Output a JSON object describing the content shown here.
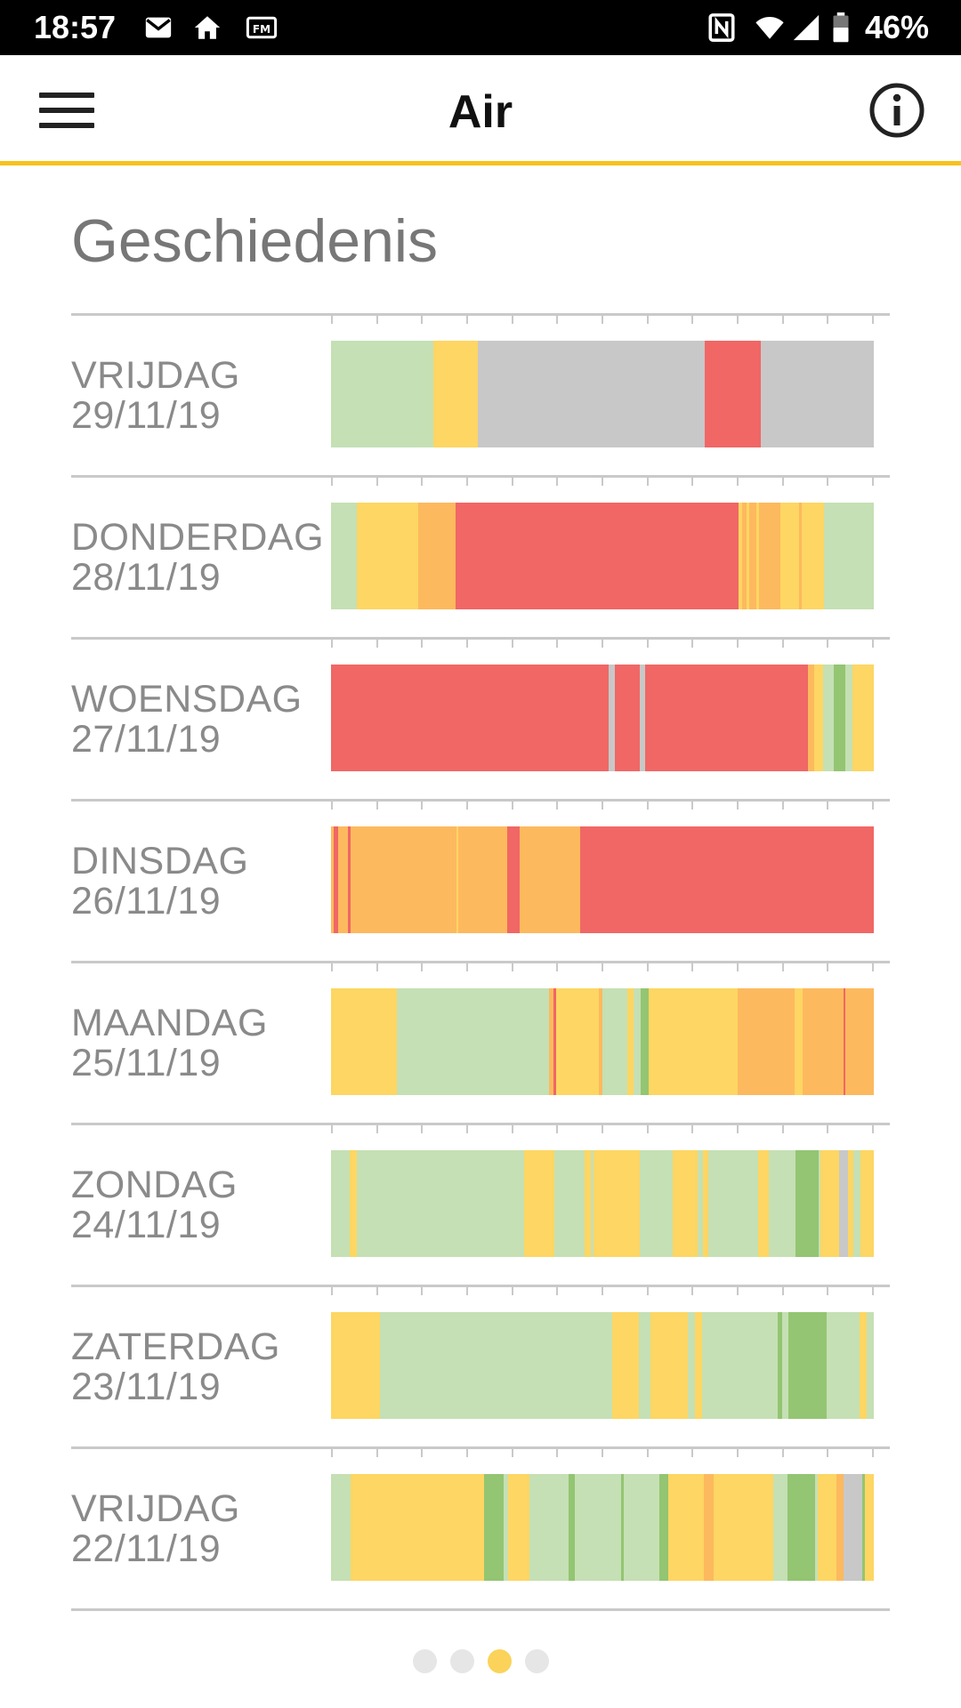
{
  "status_bar": {
    "time": "18:57",
    "left_icons": [
      "gmail-icon",
      "home-icon",
      "fm-radio-icon"
    ],
    "right_icons": [
      "nfc-icon",
      "wifi-icon",
      "signal-icon",
      "battery-icon"
    ],
    "battery": "46%"
  },
  "app_bar": {
    "title": "Air",
    "menu_icon": "hamburger-menu-icon",
    "info_icon": "info-icon"
  },
  "section_title": "Geschiedenis",
  "colors": {
    "G": "#c5e0b4",
    "D": "#93c572",
    "Y": "#fdd663",
    "O": "#fdb95e",
    "R": "#f06765",
    "S": "#c8c8c8",
    "accent": "#f7c21b"
  },
  "days": [
    {
      "day": "VRIJDAG",
      "date": "29/11/19",
      "segments": [
        [
          "G",
          0.188
        ],
        [
          "Y",
          0.083
        ],
        [
          "S",
          0.418
        ],
        [
          "R",
          0.102
        ],
        [
          "S",
          0.209
        ]
      ]
    },
    {
      "day": "DONDERDAG",
      "date": "28/11/19",
      "segments": [
        [
          "G",
          0.048
        ],
        [
          "Y",
          0.112
        ],
        [
          "O",
          0.07
        ],
        [
          "R",
          0.52
        ],
        [
          "Y",
          0.008
        ],
        [
          "O",
          0.008
        ],
        [
          "Y",
          0.005
        ],
        [
          "O",
          0.012
        ],
        [
          "Y",
          0.005
        ],
        [
          "O",
          0.04
        ],
        [
          "Y",
          0.035
        ],
        [
          "O",
          0.005
        ],
        [
          "Y",
          0.04
        ],
        [
          "G",
          0.092
        ]
      ]
    },
    {
      "day": "WOENSDAG",
      "date": "27/11/19",
      "segments": [
        [
          "R",
          0.51
        ],
        [
          "S",
          0.012
        ],
        [
          "R",
          0.045
        ],
        [
          "S",
          0.01
        ],
        [
          "R",
          0.3
        ],
        [
          "O",
          0.012
        ],
        [
          "Y",
          0.015
        ],
        [
          "G",
          0.02
        ],
        [
          "D",
          0.022
        ],
        [
          "G",
          0.012
        ],
        [
          "Y",
          0.04
        ]
      ]
    },
    {
      "day": "DINSDAG",
      "date": "26/11/19",
      "segments": [
        [
          "O",
          0.005
        ],
        [
          "R",
          0.008
        ],
        [
          "O",
          0.018
        ],
        [
          "R",
          0.005
        ],
        [
          "O",
          0.195
        ],
        [
          "Y",
          0.004
        ],
        [
          "O",
          0.09
        ],
        [
          "R",
          0.022
        ],
        [
          "O",
          0.112
        ],
        [
          "R",
          0.541
        ]
      ]
    },
    {
      "day": "MAANDAG",
      "date": "25/11/19",
      "segments": [
        [
          "Y",
          0.105
        ],
        [
          "G",
          0.243
        ],
        [
          "O",
          0.008
        ],
        [
          "R",
          0.004
        ],
        [
          "Y",
          0.068
        ],
        [
          "O",
          0.005
        ],
        [
          "G",
          0.04
        ],
        [
          "Y",
          0.01
        ],
        [
          "G",
          0.012
        ],
        [
          "D",
          0.012
        ],
        [
          "Y",
          0.142
        ],
        [
          "O",
          0.092
        ],
        [
          "Y",
          0.012
        ],
        [
          "O",
          0.065
        ],
        [
          "R",
          0.004
        ],
        [
          "O",
          0.045
        ]
      ]
    },
    {
      "day": "ZONDAG",
      "date": "24/11/19",
      "segments": [
        [
          "G",
          0.035
        ],
        [
          "Y",
          0.012
        ],
        [
          "G",
          0.308
        ],
        [
          "Y",
          0.055
        ],
        [
          "G",
          0.055
        ],
        [
          "Y",
          0.012
        ],
        [
          "G",
          0.005
        ],
        [
          "Y",
          0.085
        ],
        [
          "G",
          0.06
        ],
        [
          "Y",
          0.045
        ],
        [
          "G",
          0.01
        ],
        [
          "Y",
          0.01
        ],
        [
          "G",
          0.092
        ],
        [
          "Y",
          0.02
        ],
        [
          "G",
          0.048
        ],
        [
          "D",
          0.042
        ],
        [
          "G",
          0.004
        ],
        [
          "Y",
          0.035
        ],
        [
          "S",
          0.016
        ],
        [
          "Y",
          0.01
        ],
        [
          "G",
          0.012
        ],
        [
          "Y",
          0.025
        ]
      ]
    },
    {
      "day": "ZATERDAG",
      "date": "23/11/19",
      "segments": [
        [
          "Y",
          0.09
        ],
        [
          "G",
          0.428
        ],
        [
          "Y",
          0.05
        ],
        [
          "G",
          0.02
        ],
        [
          "Y",
          0.07
        ],
        [
          "G",
          0.012
        ],
        [
          "Y",
          0.013
        ],
        [
          "G",
          0.14
        ],
        [
          "D",
          0.008
        ],
        [
          "G",
          0.012
        ],
        [
          "D",
          0.07
        ],
        [
          "G",
          0.06
        ],
        [
          "Y",
          0.014
        ],
        [
          "G",
          0.013
        ]
      ]
    },
    {
      "day": "VRIJDAG",
      "date": "22/11/19",
      "segments": [
        [
          "G",
          0.035
        ],
        [
          "Y",
          0.245
        ],
        [
          "D",
          0.035
        ],
        [
          "G",
          0.008
        ],
        [
          "Y",
          0.04
        ],
        [
          "G",
          0.07
        ],
        [
          "D",
          0.012
        ],
        [
          "G",
          0.085
        ],
        [
          "D",
          0.005
        ],
        [
          "G",
          0.065
        ],
        [
          "D",
          0.015
        ],
        [
          "Y",
          0.065
        ],
        [
          "O",
          0.018
        ],
        [
          "Y",
          0.11
        ],
        [
          "G",
          0.025
        ],
        [
          "D",
          0.05
        ],
        [
          "G",
          0.005
        ],
        [
          "Y",
          0.035
        ],
        [
          "O",
          0.012
        ],
        [
          "S",
          0.035
        ],
        [
          "D",
          0.005
        ],
        [
          "Y",
          0.016
        ]
      ]
    }
  ],
  "pagination": {
    "count": 4,
    "active_index": 2
  }
}
